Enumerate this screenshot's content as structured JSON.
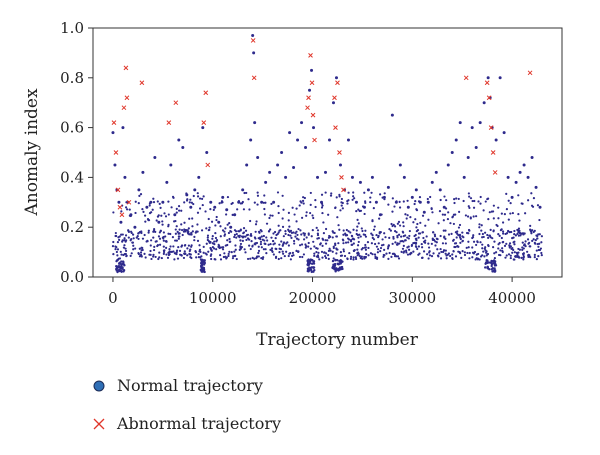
{
  "chart_data": {
    "type": "scatter",
    "xlabel": "Trajectory number",
    "ylabel": "Anomaly index",
    "xlim": [
      -2000,
      45000
    ],
    "ylim": [
      0.0,
      1.0
    ],
    "xticks": [
      0,
      10000,
      20000,
      30000,
      40000
    ],
    "yticks": [
      0.0,
      0.2,
      0.4,
      0.6,
      0.8,
      1.0
    ],
    "ytick_labels": [
      "0.0",
      "0.2",
      "0.4",
      "0.6",
      "0.8",
      "1.0"
    ],
    "grid": false,
    "legend_placement": "bottom-left",
    "series": [
      {
        "name": "Normal trajectory",
        "marker": "circle",
        "color": "#2e2a8c",
        "points": [
          [
            0,
            0.58
          ],
          [
            200,
            0.45
          ],
          [
            400,
            0.35
          ],
          [
            600,
            0.3
          ],
          [
            800,
            0.22
          ],
          [
            1000,
            0.6
          ],
          [
            1200,
            0.4
          ],
          [
            1500,
            0.3
          ],
          [
            1800,
            0.25
          ],
          [
            2200,
            0.2
          ],
          [
            2600,
            0.35
          ],
          [
            3000,
            0.42
          ],
          [
            3400,
            0.28
          ],
          [
            3800,
            0.3
          ],
          [
            4200,
            0.48
          ],
          [
            4600,
            0.22
          ],
          [
            5000,
            0.3
          ],
          [
            5400,
            0.38
          ],
          [
            5800,
            0.45
          ],
          [
            6200,
            0.25
          ],
          [
            6600,
            0.55
          ],
          [
            7000,
            0.52
          ],
          [
            7400,
            0.33
          ],
          [
            7800,
            0.28
          ],
          [
            8200,
            0.35
          ],
          [
            8600,
            0.4
          ],
          [
            9000,
            0.6
          ],
          [
            9400,
            0.5
          ],
          [
            9800,
            0.3
          ],
          [
            10200,
            0.28
          ],
          [
            10600,
            0.22
          ],
          [
            11000,
            0.32
          ],
          [
            11400,
            0.27
          ],
          [
            11800,
            0.2
          ],
          [
            12200,
            0.25
          ],
          [
            12600,
            0.3
          ],
          [
            13000,
            0.35
          ],
          [
            13400,
            0.45
          ],
          [
            13800,
            0.55
          ],
          [
            14000,
            0.97
          ],
          [
            14100,
            0.9
          ],
          [
            14200,
            0.62
          ],
          [
            14500,
            0.48
          ],
          [
            14900,
            0.3
          ],
          [
            15300,
            0.38
          ],
          [
            15700,
            0.42
          ],
          [
            16100,
            0.3
          ],
          [
            16500,
            0.45
          ],
          [
            16900,
            0.5
          ],
          [
            17300,
            0.4
          ],
          [
            17700,
            0.58
          ],
          [
            18100,
            0.44
          ],
          [
            18500,
            0.55
          ],
          [
            18900,
            0.62
          ],
          [
            19300,
            0.52
          ],
          [
            19700,
            0.75
          ],
          [
            19900,
            0.83
          ],
          [
            20100,
            0.6
          ],
          [
            20500,
            0.4
          ],
          [
            20900,
            0.3
          ],
          [
            21300,
            0.42
          ],
          [
            21700,
            0.55
          ],
          [
            22100,
            0.7
          ],
          [
            22400,
            0.8
          ],
          [
            22800,
            0.45
          ],
          [
            23200,
            0.35
          ],
          [
            23600,
            0.55
          ],
          [
            24000,
            0.4
          ],
          [
            24400,
            0.3
          ],
          [
            24800,
            0.38
          ],
          [
            25200,
            0.28
          ],
          [
            25600,
            0.35
          ],
          [
            26000,
            0.4
          ],
          [
            26400,
            0.3
          ],
          [
            26800,
            0.25
          ],
          [
            27200,
            0.32
          ],
          [
            27600,
            0.36
          ],
          [
            28000,
            0.65
          ],
          [
            28400,
            0.3
          ],
          [
            28800,
            0.45
          ],
          [
            29200,
            0.4
          ],
          [
            29600,
            0.28
          ],
          [
            30000,
            0.32
          ],
          [
            30400,
            0.35
          ],
          [
            30800,
            0.3
          ],
          [
            31200,
            0.26
          ],
          [
            31600,
            0.3
          ],
          [
            32000,
            0.38
          ],
          [
            32400,
            0.42
          ],
          [
            32800,
            0.35
          ],
          [
            33200,
            0.28
          ],
          [
            33600,
            0.45
          ],
          [
            34000,
            0.5
          ],
          [
            34400,
            0.55
          ],
          [
            34800,
            0.62
          ],
          [
            35200,
            0.4
          ],
          [
            35600,
            0.48
          ],
          [
            36000,
            0.6
          ],
          [
            36400,
            0.52
          ],
          [
            36800,
            0.62
          ],
          [
            37200,
            0.7
          ],
          [
            37600,
            0.8
          ],
          [
            37800,
            0.72
          ],
          [
            38000,
            0.6
          ],
          [
            38400,
            0.55
          ],
          [
            38800,
            0.8
          ],
          [
            39200,
            0.58
          ],
          [
            39600,
            0.4
          ],
          [
            40000,
            0.32
          ],
          [
            40400,
            0.38
          ],
          [
            40800,
            0.42
          ],
          [
            41200,
            0.45
          ],
          [
            41600,
            0.4
          ],
          [
            42000,
            0.48
          ],
          [
            42400,
            0.36
          ],
          [
            42800,
            0.28
          ]
        ]
      },
      {
        "name": "Abnormal trajectory",
        "marker": "x",
        "color": "#e0362a",
        "points": [
          [
            100,
            0.62
          ],
          [
            300,
            0.5
          ],
          [
            500,
            0.35
          ],
          [
            700,
            0.28
          ],
          [
            900,
            0.25
          ],
          [
            1100,
            0.68
          ],
          [
            1300,
            0.84
          ],
          [
            1400,
            0.72
          ],
          [
            1600,
            0.3
          ],
          [
            2900,
            0.78
          ],
          [
            5600,
            0.62
          ],
          [
            6300,
            0.7
          ],
          [
            9100,
            0.62
          ],
          [
            9300,
            0.74
          ],
          [
            9500,
            0.45
          ],
          [
            14050,
            0.95
          ],
          [
            14150,
            0.8
          ],
          [
            19500,
            0.68
          ],
          [
            19600,
            0.72
          ],
          [
            19800,
            0.89
          ],
          [
            19950,
            0.78
          ],
          [
            20050,
            0.65
          ],
          [
            20200,
            0.55
          ],
          [
            22200,
            0.72
          ],
          [
            22300,
            0.6
          ],
          [
            22500,
            0.78
          ],
          [
            22700,
            0.5
          ],
          [
            22900,
            0.4
          ],
          [
            23100,
            0.35
          ],
          [
            35400,
            0.8
          ],
          [
            37500,
            0.78
          ],
          [
            37700,
            0.72
          ],
          [
            37900,
            0.6
          ],
          [
            38100,
            0.5
          ],
          [
            38300,
            0.42
          ],
          [
            41800,
            0.82
          ]
        ]
      }
    ]
  }
}
